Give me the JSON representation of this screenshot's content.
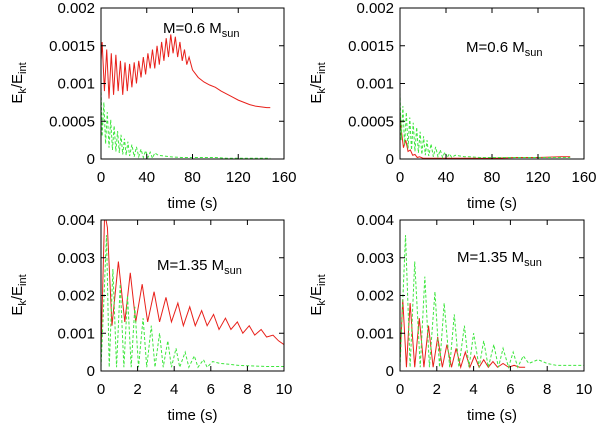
{
  "chart_data": [
    {
      "type": "line",
      "annotation": {
        "main": "M=0.6 M",
        "sub": "sun"
      },
      "xlabel": "time (s)",
      "ylabel": {
        "main": "E",
        "sub1": "k",
        "mid": "/E",
        "sub2": "int"
      },
      "xlim": [
        0,
        160
      ],
      "ylim": [
        0,
        0.002
      ],
      "xticks": [
        0,
        40,
        80,
        120,
        160
      ],
      "yticks": [
        0,
        0.0005,
        0.001,
        0.0015,
        0.002
      ],
      "ytick_labels": [
        "0",
        "0.0005",
        "0.001",
        "0.0015",
        "0.002"
      ],
      "series": [
        {
          "color": "#e8201a",
          "style": "solid",
          "x": [
            0,
            1,
            3,
            5,
            7,
            9,
            11,
            13,
            15,
            17,
            19,
            21,
            23,
            25,
            27,
            29,
            31,
            33,
            35,
            37,
            39,
            41,
            43,
            45,
            47,
            49,
            51,
            53,
            55,
            57,
            59,
            61,
            63,
            65,
            67,
            69,
            71,
            73,
            75,
            77,
            80,
            85,
            90,
            95,
            100,
            105,
            110,
            115,
            120,
            125,
            130,
            135,
            140,
            145,
            148
          ],
          "values": [
            0.0013,
            0.00155,
            0.0009,
            0.00145,
            0.0008,
            0.0014,
            0.00085,
            0.00138,
            0.0009,
            0.0013,
            0.00085,
            0.00128,
            0.0009,
            0.00126,
            0.00095,
            0.00128,
            0.001,
            0.0013,
            0.00108,
            0.00135,
            0.00112,
            0.0014,
            0.0012,
            0.00145,
            0.0012,
            0.0015,
            0.00125,
            0.00155,
            0.0013,
            0.0016,
            0.00135,
            0.00165,
            0.0014,
            0.00162,
            0.00135,
            0.00155,
            0.0013,
            0.00145,
            0.00125,
            0.00135,
            0.00118,
            0.00108,
            0.00102,
            0.00098,
            0.00095,
            0.0009,
            0.00086,
            0.00082,
            0.00078,
            0.00075,
            0.00072,
            0.0007,
            0.00069,
            0.00068,
            0.00068
          ]
        },
        {
          "color": "#3ee63e",
          "style": "dashed",
          "x": [
            0,
            1,
            2.5,
            4,
            5.5,
            7,
            8.5,
            10,
            11.5,
            13,
            14.5,
            16,
            17.5,
            19,
            20.5,
            22,
            23.5,
            25,
            27,
            29,
            31,
            33,
            35,
            37,
            39,
            41,
            43,
            45,
            47,
            50,
            55,
            60,
            70,
            80,
            90,
            100,
            110,
            120,
            130,
            140,
            148
          ],
          "values": [
            0.00095,
            0.0003,
            0.00075,
            0.0002,
            0.00062,
            0.00015,
            0.00052,
            0.00012,
            0.00044,
            0.0001,
            0.00037,
            8e-05,
            0.00032,
            6e-05,
            0.00027,
            5e-05,
            0.00023,
            4e-05,
            0.00019,
            3e-05,
            0.00016,
            3e-05,
            0.00013,
            2e-05,
            0.00011,
            2e-05,
            9e-05,
            1e-05,
            8e-05,
            5e-05,
            4e-05,
            3e-05,
            2e-05,
            2e-05,
            2e-05,
            2e-05,
            1e-05,
            1e-05,
            1e-05,
            1e-05,
            1e-05
          ]
        }
      ]
    },
    {
      "type": "line",
      "annotation": {
        "main": "M=0.6 M",
        "sub": "sun"
      },
      "xlabel": "time (s)",
      "ylabel": {
        "main": "E",
        "sub1": "k",
        "mid": "/E",
        "sub2": "int"
      },
      "xlim": [
        0,
        160
      ],
      "ylim": [
        0,
        0.002
      ],
      "xticks": [
        0,
        40,
        80,
        120,
        160
      ],
      "yticks": [
        0,
        0.0005,
        0.001,
        0.0015,
        0.002
      ],
      "ytick_labels": [
        "0",
        "0.0005",
        "0.001",
        "0.0015",
        "0.002"
      ],
      "series": [
        {
          "color": "#e8201a",
          "style": "solid",
          "x": [
            0,
            1,
            3,
            5,
            7,
            9,
            11,
            13,
            15,
            17,
            20,
            25,
            30,
            40,
            60,
            80,
            100,
            120,
            140,
            148
          ],
          "values": [
            0.0006,
            0.0004,
            0.00015,
            0.00025,
            0.0001,
            0.00012,
            5e-05,
            6e-05,
            2e-05,
            3e-05,
            1e-05,
            1e-05,
            1e-05,
            1e-05,
            1e-05,
            1e-05,
            2e-05,
            2e-05,
            3e-05,
            3e-05
          ]
        },
        {
          "color": "#3ee63e",
          "style": "dashed",
          "x": [
            0,
            1,
            2.5,
            4,
            5.5,
            7,
            8.5,
            10,
            11.5,
            13,
            14.5,
            16,
            17.5,
            19,
            20.5,
            22,
            23.5,
            25,
            27,
            29,
            31,
            33,
            35,
            37,
            39,
            41,
            43,
            45,
            48,
            52,
            56,
            60,
            70,
            80,
            100,
            120,
            140,
            148
          ],
          "values": [
            0.00088,
            0.00025,
            0.0007,
            0.00018,
            0.00062,
            0.00014,
            0.00055,
            0.00012,
            0.00048,
            0.0001,
            0.00042,
            8e-05,
            0.00036,
            6e-05,
            0.0003,
            5e-05,
            0.00025,
            4e-05,
            0.0002,
            3e-05,
            0.00016,
            3e-05,
            0.00012,
            2e-05,
            9e-05,
            2e-05,
            7e-05,
            2e-05,
            5e-05,
            4e-05,
            3e-05,
            3e-05,
            2e-05,
            2e-05,
            2e-05,
            2e-05,
            2e-05,
            2e-05
          ]
        }
      ]
    },
    {
      "type": "line",
      "annotation": {
        "main": "M=1.35 M",
        "sub": "sun"
      },
      "xlabel": "time (s)",
      "ylabel": {
        "main": "E",
        "sub1": "k",
        "mid": "/E",
        "sub2": "int"
      },
      "xlim": [
        0,
        10
      ],
      "ylim": [
        0,
        0.004
      ],
      "xticks": [
        0,
        2,
        4,
        6,
        8,
        10
      ],
      "yticks": [
        0,
        0.001,
        0.002,
        0.003,
        0.004
      ],
      "ytick_labels": [
        "0",
        "0.001",
        "0.002",
        "0.003",
        "0.004"
      ],
      "series": [
        {
          "color": "#e8201a",
          "style": "solid",
          "x": [
            0,
            0.2,
            0.35,
            0.6,
            0.95,
            1.3,
            1.6,
            1.9,
            2.25,
            2.55,
            2.9,
            3.2,
            3.55,
            3.85,
            4.2,
            4.5,
            4.85,
            5.15,
            5.5,
            5.8,
            6.15,
            6.45,
            6.8,
            7.1,
            7.45,
            7.75,
            8.1,
            8.4,
            8.75,
            9.05,
            9.4,
            9.7,
            10
          ],
          "values": [
            0.0005,
            0.0042,
            0.0038,
            0.0012,
            0.0029,
            0.0013,
            0.0026,
            0.0013,
            0.0023,
            0.0013,
            0.0021,
            0.0013,
            0.00195,
            0.0013,
            0.0018,
            0.0012,
            0.0017,
            0.0012,
            0.0016,
            0.0012,
            0.0015,
            0.0011,
            0.0014,
            0.0011,
            0.0013,
            0.001,
            0.0012,
            0.00095,
            0.0011,
            0.0009,
            0.00095,
            0.0008,
            0.0007
          ]
        },
        {
          "color": "#3ee63e",
          "style": "dashed",
          "x": [
            0,
            0.15,
            0.3,
            0.45,
            0.65,
            0.85,
            1.05,
            1.25,
            1.45,
            1.65,
            1.85,
            2.05,
            2.3,
            2.5,
            2.75,
            2.95,
            3.2,
            3.4,
            3.65,
            3.85,
            4.1,
            4.3,
            4.6,
            4.8,
            5.1,
            5.3,
            5.6,
            5.8,
            6.1,
            6.5,
            7,
            7.5,
            8,
            8.5,
            9,
            9.5,
            10
          ],
          "values": [
            0.0001,
            0.0018,
            0.0036,
            0.0001,
            0.0027,
            0.0001,
            0.0023,
            0.0001,
            0.002,
            0.0001,
            0.0017,
            0.0001,
            0.0014,
            0.0001,
            0.0012,
            0.0001,
            0.001,
            0.0001,
            0.0008,
            0.0001,
            0.0006,
            0.0001,
            0.0005,
            0.0001,
            0.0004,
            0.0001,
            0.0003,
            0.0001,
            0.00025,
            0.0002,
            0.00018,
            0.00015,
            0.00014,
            0.00013,
            0.00012,
            0.00012,
            0.00012
          ]
        }
      ]
    },
    {
      "type": "line",
      "annotation": {
        "main": "M=1.35 M",
        "sub": "sun"
      },
      "xlabel": "time (s)",
      "ylabel": {
        "main": "E",
        "sub1": "k",
        "mid": "/E",
        "sub2": "int"
      },
      "xlim": [
        0,
        10
      ],
      "ylim": [
        0,
        0.004
      ],
      "xticks": [
        0,
        2,
        4,
        6,
        8,
        10
      ],
      "yticks": [
        0,
        0.001,
        0.002,
        0.003,
        0.004
      ],
      "ytick_labels": [
        "0",
        "0.001",
        "0.002",
        "0.003",
        "0.004"
      ],
      "series": [
        {
          "color": "#e8201a",
          "style": "solid",
          "x": [
            0,
            0.15,
            0.35,
            0.55,
            0.8,
            1.05,
            1.3,
            1.55,
            1.8,
            2.05,
            2.3,
            2.55,
            2.8,
            3.05,
            3.3,
            3.55,
            3.8,
            4.05,
            4.3,
            4.55,
            4.8,
            5.05,
            5.3,
            5.6,
            5.9,
            6.2,
            6.5,
            6.8
          ],
          "values": [
            0.0003,
            0.0019,
            0.0001,
            0.0018,
            0.0001,
            0.0014,
            0.0001,
            0.0012,
            0.0001,
            0.0009,
            0.0001,
            0.0007,
            0.0001,
            0.0006,
            0.0001,
            0.0005,
            0.0001,
            0.0004,
            0.0001,
            0.0003,
            0.0001,
            0.00025,
            0.0001,
            0.0002,
            0.0001,
            0.00015,
            0.0001,
            0.0001
          ]
        },
        {
          "color": "#3ee63e",
          "style": "dashed",
          "x": [
            0,
            0.3,
            0.55,
            0.8,
            1.1,
            1.35,
            1.6,
            1.9,
            2.15,
            2.4,
            2.7,
            2.95,
            3.2,
            3.5,
            3.75,
            4,
            4.3,
            4.55,
            4.8,
            5.1,
            5.35,
            5.6,
            5.9,
            6.15,
            6.4,
            6.7,
            7,
            7.5,
            8,
            8.5,
            9,
            9.5,
            10
          ],
          "values": [
            0.0001,
            0.0036,
            0.0001,
            0.0029,
            0.0001,
            0.0025,
            0.0001,
            0.0021,
            0.0001,
            0.0018,
            0.0001,
            0.0015,
            0.0001,
            0.0012,
            0.0001,
            0.001,
            0.0001,
            0.0008,
            0.0001,
            0.0007,
            0.0001,
            0.0006,
            0.0001,
            0.0005,
            0.0001,
            0.0004,
            0.0002,
            0.0003,
            0.0002,
            0.00015,
            0.00015,
            0.00015,
            0.00015
          ]
        }
      ]
    }
  ]
}
